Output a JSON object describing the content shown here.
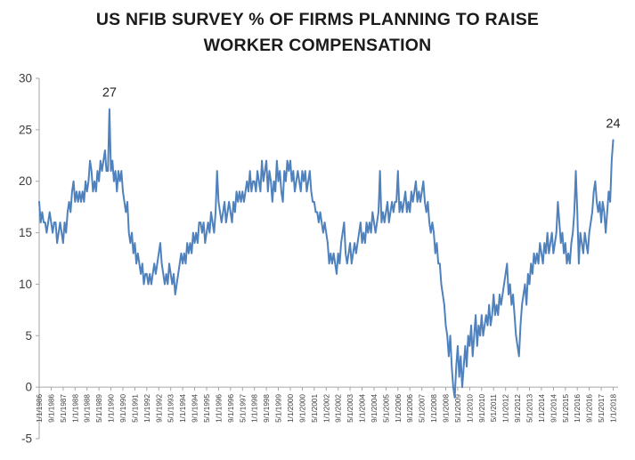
{
  "header": {
    "title_line1": "US NFIB SURVEY % OF FIRMS PLANNING TO RAISE",
    "title_line2": "WORKER COMPENSATION"
  },
  "chart_data": {
    "type": "line",
    "title": "US NFIB SURVEY % OF FIRMS PLANNING TO RAISE WORKER COMPENSATION",
    "xlabel": "",
    "ylabel": "",
    "ylim": [
      -5,
      30
    ],
    "y_ticks": [
      30,
      25,
      20,
      15,
      10,
      5,
      0,
      -5
    ],
    "grid": false,
    "legend": "none",
    "line_color": "#4F81BD",
    "axis_color": "#A6A6A6",
    "tick_label_color": "#3D3D3D",
    "annotation_color": "#262626",
    "x_tick_interval_months": 8,
    "x_tick_labels": [
      "1/1/1986",
      "9/1/1986",
      "5/1/1987",
      "1/1/1988",
      "9/1/1988",
      "5/1/1989",
      "1/1/1990",
      "9/1/1990",
      "5/1/1991",
      "1/1/1992",
      "9/1/1992",
      "5/1/1993",
      "1/1/1994",
      "9/1/1994",
      "5/1/1995",
      "1/1/1996",
      "9/1/1996",
      "5/1/1997",
      "1/1/1998",
      "9/1/1998",
      "5/1/1999",
      "1/1/2000",
      "9/1/2000",
      "5/1/2001",
      "1/1/2002",
      "9/1/2002",
      "5/1/2003",
      "1/1/2004",
      "9/1/2004",
      "5/1/2005",
      "1/1/2006",
      "9/1/2006",
      "5/1/2007",
      "1/1/2008",
      "9/1/2008",
      "5/1/2009",
      "1/1/2010",
      "9/1/2010",
      "5/1/2011",
      "1/1/2012",
      "9/1/2012",
      "5/1/2013",
      "1/1/2014",
      "9/1/2014",
      "5/1/2015",
      "1/1/2016",
      "9/1/2016",
      "5/1/2017",
      "1/1/2018"
    ],
    "annotations": [
      {
        "text": "27",
        "x_index": 47,
        "y_value": 27
      },
      {
        "text": "24",
        "x_index": 384,
        "y_value": 24
      }
    ],
    "series": [
      {
        "name": "% of firms planning to raise worker compensation",
        "start": "1/1/1986",
        "frequency": "monthly",
        "values": [
          18,
          16,
          17,
          16,
          16,
          15,
          16,
          17,
          16,
          15,
          16,
          16,
          14,
          15,
          16,
          15,
          14,
          16,
          15,
          17,
          18,
          17,
          19,
          20,
          18,
          19,
          18,
          19,
          18,
          19,
          18,
          20,
          19,
          20,
          22,
          21,
          19,
          20,
          19,
          21,
          20,
          22,
          21,
          22,
          23,
          21,
          21,
          27,
          21,
          22,
          20,
          21,
          19,
          21,
          20,
          21,
          19,
          18,
          17,
          18,
          15,
          14,
          15,
          13,
          14,
          12,
          13,
          12,
          11,
          12,
          10,
          11,
          11,
          10,
          11,
          10,
          11,
          12,
          11,
          12,
          13,
          14,
          12,
          11,
          10,
          11,
          10,
          12,
          11,
          10,
          11,
          9,
          10,
          11,
          12,
          13,
          12,
          13,
          12,
          14,
          13,
          14,
          13,
          15,
          14,
          15,
          14,
          16,
          16,
          15,
          16,
          14,
          15,
          16,
          15,
          17,
          16,
          15,
          17,
          21,
          18,
          17,
          16,
          17,
          18,
          16,
          17,
          18,
          17,
          16,
          18,
          17,
          19,
          18,
          19,
          18,
          19,
          18,
          19,
          20,
          19,
          21,
          19,
          20,
          20,
          19,
          21,
          20,
          19,
          22,
          20,
          21,
          22,
          19,
          21,
          20,
          18,
          20,
          19,
          22,
          20,
          21,
          19,
          18,
          21,
          20,
          22,
          21,
          22,
          20,
          21,
          19,
          20,
          21,
          20,
          19,
          21,
          20,
          21,
          19,
          20,
          21,
          19,
          18,
          18,
          17,
          17,
          16,
          17,
          16,
          15,
          16,
          15,
          14,
          12,
          13,
          12,
          13,
          12,
          11,
          13,
          12,
          14,
          15,
          16,
          13,
          12,
          13,
          14,
          12,
          13,
          14,
          13,
          14,
          15,
          16,
          14,
          15,
          14,
          16,
          15,
          16,
          15,
          17,
          16,
          15,
          16,
          17,
          21,
          16,
          17,
          16,
          17,
          18,
          16,
          17,
          18,
          17,
          18,
          18,
          21,
          17,
          18,
          17,
          18,
          19,
          17,
          18,
          17,
          19,
          18,
          19,
          20,
          18,
          19,
          18,
          19,
          20,
          18,
          17,
          18,
          16,
          15,
          16,
          15,
          13,
          14,
          12,
          12,
          10,
          9,
          8,
          6,
          5,
          3,
          5,
          2,
          0,
          -1,
          2,
          4,
          1,
          3,
          0,
          2,
          4,
          2,
          5,
          4,
          6,
          3,
          5,
          7,
          4,
          6,
          5,
          7,
          5,
          6,
          7,
          6,
          8,
          6,
          7,
          9,
          7,
          8,
          7,
          9,
          8,
          9,
          10,
          11,
          12,
          9,
          10,
          8,
          9,
          7,
          5,
          4,
          3,
          6,
          8,
          9,
          10,
          8,
          11,
          10,
          12,
          11,
          13,
          12,
          13,
          12,
          14,
          13,
          12,
          14,
          13,
          15,
          13,
          14,
          15,
          13,
          14,
          15,
          18,
          16,
          14,
          15,
          13,
          14,
          12,
          13,
          12,
          14,
          15,
          17,
          21,
          17,
          12,
          15,
          14,
          13,
          15,
          14,
          13,
          15,
          16,
          17,
          19,
          20,
          18,
          17,
          18,
          16,
          18,
          17,
          15,
          17,
          19,
          18,
          22,
          24
        ]
      }
    ]
  }
}
